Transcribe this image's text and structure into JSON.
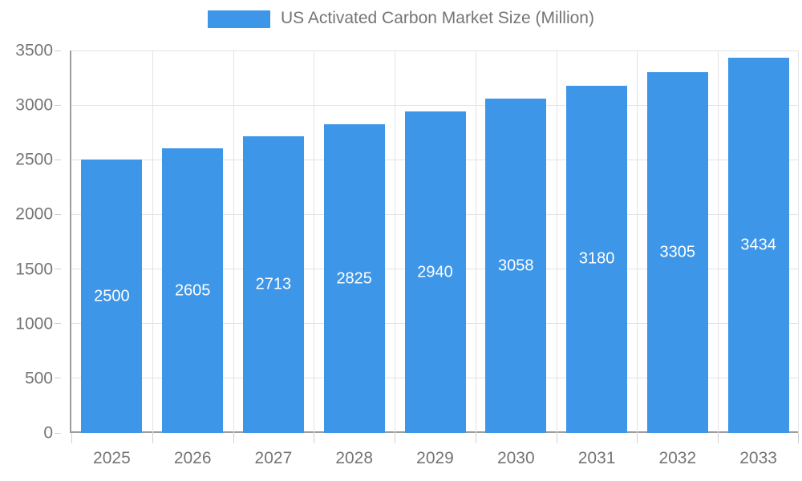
{
  "legend": {
    "label": "US Activated Carbon Market Size (Million)"
  },
  "chart_data": {
    "type": "bar",
    "title": "US Activated Carbon Market Size (Million)",
    "categories": [
      "2025",
      "2026",
      "2027",
      "2028",
      "2029",
      "2030",
      "2031",
      "2032",
      "2033"
    ],
    "values": [
      2500,
      2605,
      2713,
      2825,
      2940,
      3058,
      3180,
      3305,
      3434
    ],
    "xlabel": "",
    "ylabel": "",
    "ylim": [
      0,
      3500
    ],
    "yticks": [
      0,
      500,
      1000,
      1500,
      2000,
      2500,
      3000,
      3500
    ],
    "grid": true,
    "legend_position": "top",
    "value_labels": "inside-center"
  },
  "colors": {
    "bar": "#3D96E8",
    "axis": "#9e9e9e",
    "gridline": "#e3e3e3",
    "tick": "#cfcfcf",
    "label_text": "#757575",
    "value_label_text": "#ffffff",
    "background": "#ffffff"
  }
}
